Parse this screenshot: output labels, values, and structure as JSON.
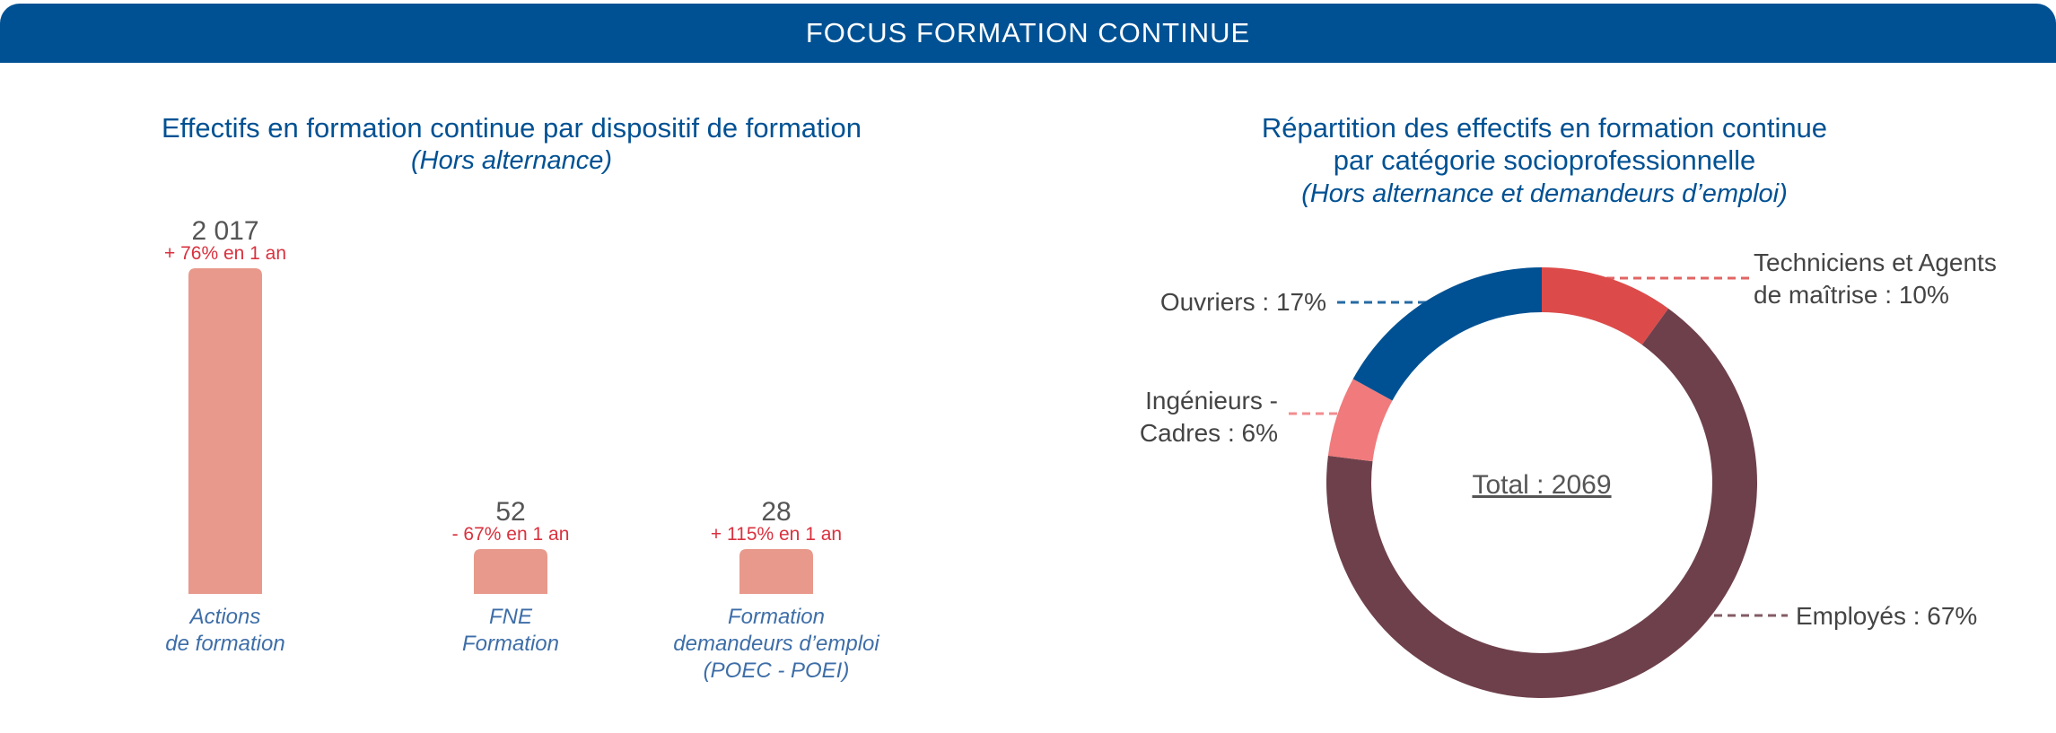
{
  "banner": {
    "title": "FOCUS FORMATION CONTINUE"
  },
  "chart_data": [
    {
      "type": "bar",
      "title": "Effectifs en formation continue par dispositif de formation",
      "subtitle": "(Hors alternance)",
      "categories": [
        [
          "Actions",
          "de formation"
        ],
        [
          "FNE",
          "Formation"
        ],
        [
          "Formation",
          "demandeurs d’emploi",
          "(POEC - POEI)"
        ]
      ],
      "values": [
        2017,
        52,
        28
      ],
      "value_labels": [
        "2 017",
        "52",
        "28"
      ],
      "annotations": [
        "+ 76% en 1 an",
        "- 67% en 1 an",
        "+ 115% en 1 an"
      ],
      "bar_color": "#e8998b",
      "grid": false
    },
    {
      "type": "pie",
      "title_lines": [
        "Répartition des effectifs en formation continue",
        "par catégorie socioprofessionnelle"
      ],
      "subtitle": "(Hors alternance et demandeurs d’emploi)",
      "center_label": "Total : 2069",
      "total": 2069,
      "slices": [
        {
          "label": [
            "Techniciens et Agents",
            "de maîtrise : 10%"
          ],
          "value": 10,
          "color": "#dc4b4a"
        },
        {
          "label": [
            "Employés : 67%"
          ],
          "value": 67,
          "color": "#6e404b"
        },
        {
          "label": [
            "Ingénieurs -",
            "Cadres : 6%"
          ],
          "value": 6,
          "color": "#f07a7c"
        },
        {
          "label": [
            "Ouvriers : 17%"
          ],
          "value": 17,
          "color": "#005193"
        }
      ]
    }
  ]
}
